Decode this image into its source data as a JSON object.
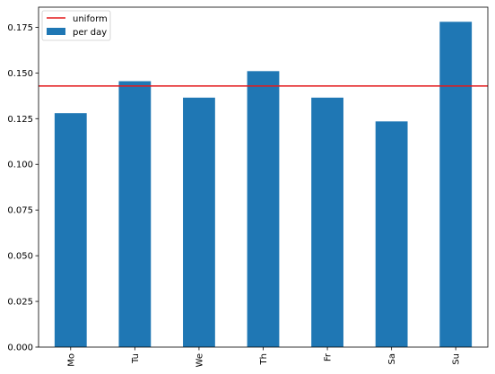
{
  "chart_data": {
    "type": "bar",
    "categories": [
      "Mo",
      "Tu",
      "We",
      "Th",
      "Fr",
      "Sa",
      "Su"
    ],
    "series": [
      {
        "name": "per day",
        "values": [
          0.128,
          0.1455,
          0.1365,
          0.151,
          0.1365,
          0.1235,
          0.178
        ],
        "color": "#1f77b4"
      }
    ],
    "reference_line": {
      "name": "uniform",
      "value": 0.142857,
      "color": "#e31a1c"
    },
    "ylim": [
      0,
      0.186
    ],
    "yticks": [
      0.0,
      0.025,
      0.05,
      0.075,
      0.1,
      0.125,
      0.15,
      0.175
    ],
    "ytick_labels": [
      "0.000",
      "0.025",
      "0.050",
      "0.075",
      "0.100",
      "0.125",
      "0.150",
      "0.175"
    ],
    "xtick_rotation": "vertical",
    "legend_position": "top-left",
    "grid": false
  }
}
